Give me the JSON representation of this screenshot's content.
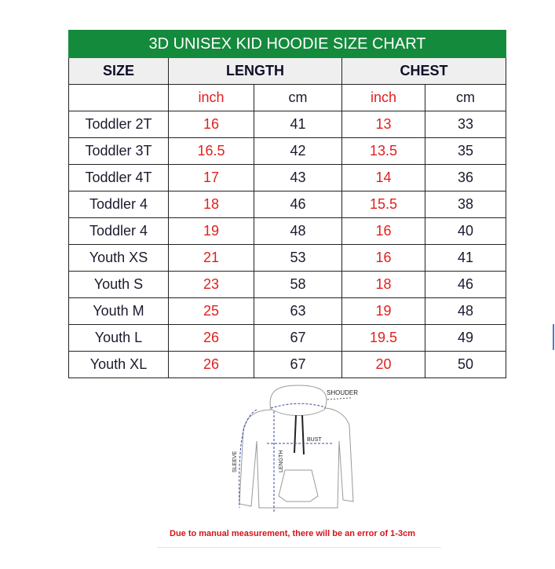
{
  "title": "3D UNISEX KID HOODIE SIZE CHART",
  "headers": {
    "size": "SIZE",
    "length": "LENGTH",
    "chest": "CHEST"
  },
  "units": [
    "inch",
    "cm",
    "inch",
    "cm"
  ],
  "rows": [
    [
      "Toddler 2T",
      "16",
      "41",
      "13",
      "33"
    ],
    [
      "Toddler 3T",
      "16.5",
      "42",
      "13.5",
      "35"
    ],
    [
      "Toddler 4T",
      "17",
      "43",
      "14",
      "36"
    ],
    [
      "Toddler 4",
      "18",
      "46",
      "15.5",
      "38"
    ],
    [
      "Toddler 4",
      "19",
      "48",
      "16",
      "40"
    ],
    [
      "Youth XS",
      "21",
      "53",
      "16",
      "41"
    ],
    [
      "Youth S",
      "23",
      "58",
      "18",
      "46"
    ],
    [
      "Youth M",
      "25",
      "63",
      "19",
      "48"
    ],
    [
      "Youth L",
      "26",
      "67",
      "19.5",
      "49"
    ],
    [
      "Youth XL",
      "26",
      "67",
      "20",
      "50"
    ]
  ],
  "diagram": {
    "shoulder": "SHOUDER",
    "bust": "BUST",
    "length": "LENGTH",
    "sleeve": "SLEEVE"
  },
  "note": "Due to manual measurement, there will be an error of 1-3cm",
  "colors": {
    "header_green": "#148a3c",
    "inch_red": "#e0201f"
  }
}
